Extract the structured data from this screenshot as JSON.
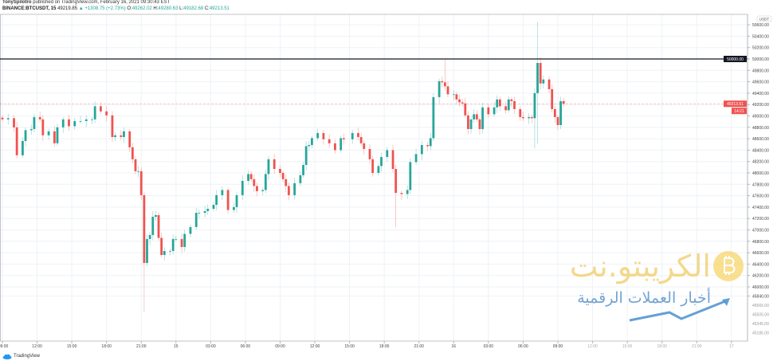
{
  "header": {
    "author": "TonySpilotro",
    "published": "published on TradingView.com, February 16, 2021 09:30:43 EST",
    "symbol": "BINANCE:BTCUSDT, 15",
    "last": "49219.85",
    "change": "▲ +1308.75 (+2.73%)",
    "o_label": "O:",
    "o": "49262.02",
    "h_label": "H:",
    "h": "49280.63",
    "l_label": "L:",
    "l": "49182.68",
    "c_label": "C:",
    "c": "49213.51"
  },
  "footer": {
    "brand": "TradingView"
  },
  "watermark": {
    "main": "الكريبتو.نت",
    "sub": "أخبار العملات الرقمية"
  },
  "colors": {
    "up": "#26a69a",
    "down": "#ef5350",
    "grid": "#eef2f6",
    "hline": "#131722",
    "axis": "#b2b5be"
  },
  "chart_data": {
    "type": "candlestick",
    "interval": "15m",
    "currency": "USDT",
    "ylim": [
      45100,
      50750
    ],
    "y_ticks": [
      "50600.00",
      "50400.00",
      "50200.00",
      "50000.00",
      "49800.00",
      "49600.00",
      "49400.00",
      "49200.00",
      "49000.00",
      "48800.00",
      "48600.00",
      "48400.00",
      "48200.00",
      "48000.00",
      "47800.00",
      "47600.00",
      "47400.00",
      "47200.00",
      "47000.00",
      "46800.00",
      "46600.00",
      "46400.00",
      "46200.00",
      "46000.00",
      "45840.00"
    ],
    "y_ticks_faded": [
      "45665.00",
      "45505.00",
      "45345.00",
      "45185.00"
    ],
    "x_ticks": [
      {
        "label": "09:00",
        "t": "14 09:00"
      },
      {
        "label": "12:00",
        "t": "14 12:00"
      },
      {
        "label": "15:00",
        "t": "14 15:00"
      },
      {
        "label": "18:00",
        "t": "14 18:00"
      },
      {
        "label": "21:00",
        "t": "14 21:00"
      },
      {
        "label": "15",
        "t": "15 00:00"
      },
      {
        "label": "03:00",
        "t": "15 03:00"
      },
      {
        "label": "06:00",
        "t": "15 06:00"
      },
      {
        "label": "09:00",
        "t": "15 09:00"
      },
      {
        "label": "12:00",
        "t": "15 12:00"
      },
      {
        "label": "15:00",
        "t": "15 15:00"
      },
      {
        "label": "18:00",
        "t": "15 18:00"
      },
      {
        "label": "21:00",
        "t": "15 21:00"
      },
      {
        "label": "16",
        "t": "16 00:00"
      },
      {
        "label": "03:00",
        "t": "16 03:00"
      },
      {
        "label": "06:00",
        "t": "16 06:00"
      },
      {
        "label": "09:00",
        "t": "16 09:00"
      },
      {
        "label": "12:00",
        "t": "16 12:00"
      },
      {
        "label": "15:00",
        "t": "16 15:00"
      },
      {
        "label": "18:00",
        "t": "16 18:00"
      },
      {
        "label": "21:00",
        "t": "16 21:00"
      },
      {
        "label": "17",
        "t": "17 00:00"
      }
    ],
    "horizontal_line": {
      "price": 50000,
      "label": "50000.00"
    },
    "last_price": {
      "price": 49213.51,
      "label": "49213.51",
      "countdown": "14:21"
    },
    "closes": [
      [
        "14 09:00",
        48940
      ],
      [
        "14 09:30",
        48960
      ],
      [
        "14 10:00",
        48800
      ],
      [
        "14 10:15",
        48310
      ],
      [
        "14 10:45",
        48560
      ],
      [
        "14 11:00",
        48750
      ],
      [
        "14 11:30",
        48770
      ],
      [
        "14 11:45",
        48980
      ],
      [
        "14 12:15",
        48940
      ],
      [
        "14 12:30",
        48660
      ],
      [
        "14 13:00",
        48730
      ],
      [
        "14 13:30",
        48520
      ],
      [
        "14 13:45",
        48800
      ],
      [
        "14 14:15",
        48940
      ],
      [
        "14 14:45",
        48820
      ],
      [
        "14 15:15",
        48910
      ],
      [
        "14 15:45",
        48910
      ],
      [
        "14 16:15",
        48940
      ],
      [
        "14 16:45",
        48940
      ],
      [
        "14 17:00",
        49170
      ],
      [
        "14 17:30",
        49080
      ],
      [
        "14 18:00",
        49010
      ],
      [
        "14 18:30",
        48630
      ],
      [
        "14 18:45",
        48660
      ],
      [
        "14 19:15",
        48630
      ],
      [
        "14 19:30",
        48730
      ],
      [
        "14 20:00",
        48450
      ],
      [
        "14 20:15",
        48240
      ],
      [
        "14 20:30",
        48030
      ],
      [
        "14 20:45",
        48030
      ],
      [
        "14 21:00",
        47610
      ],
      [
        "14 21:15",
        46420
      ],
      [
        "14 21:30",
        46840
      ],
      [
        "14 21:45",
        46910
      ],
      [
        "14 22:00",
        47230
      ],
      [
        "14 22:15",
        47260
      ],
      [
        "14 22:30",
        46860
      ],
      [
        "14 22:45",
        46560
      ],
      [
        "14 23:00",
        46630
      ],
      [
        "14 23:30",
        46630
      ],
      [
        "14 23:45",
        46840
      ],
      [
        "15 00:00",
        46840
      ],
      [
        "15 00:30",
        46700
      ],
      [
        "15 00:45",
        46930
      ],
      [
        "15 01:15",
        47050
      ],
      [
        "15 01:45",
        47300
      ],
      [
        "15 02:00",
        47300
      ],
      [
        "15 02:30",
        47330
      ],
      [
        "15 02:45",
        47370
      ],
      [
        "15 03:15",
        47440
      ],
      [
        "15 03:30",
        47610
      ],
      [
        "15 04:00",
        47700
      ],
      [
        "15 04:30",
        47350
      ],
      [
        "15 05:00",
        47400
      ],
      [
        "15 05:15",
        47610
      ],
      [
        "15 05:45",
        47860
      ],
      [
        "15 06:15",
        47980
      ],
      [
        "15 06:30",
        47890
      ],
      [
        "15 06:45",
        47770
      ],
      [
        "15 07:00",
        47680
      ],
      [
        "15 07:30",
        47700
      ],
      [
        "15 07:45",
        47980
      ],
      [
        "15 08:00",
        48240
      ],
      [
        "15 08:30",
        48070
      ],
      [
        "15 09:00",
        48000
      ],
      [
        "15 09:15",
        47890
      ],
      [
        "15 09:30",
        47770
      ],
      [
        "15 09:45",
        47610
      ],
      [
        "15 10:15",
        47820
      ],
      [
        "15 10:45",
        47960
      ],
      [
        "15 11:00",
        48140
      ],
      [
        "15 11:15",
        48470
      ],
      [
        "15 11:30",
        48490
      ],
      [
        "15 11:45",
        48610
      ],
      [
        "15 12:15",
        48700
      ],
      [
        "15 12:45",
        48590
      ],
      [
        "15 13:15",
        48520
      ],
      [
        "15 13:45",
        48400
      ],
      [
        "15 14:15",
        48610
      ],
      [
        "15 14:30",
        48590
      ],
      [
        "15 15:15",
        48700
      ],
      [
        "15 15:45",
        48630
      ],
      [
        "15 16:00",
        48520
      ],
      [
        "15 16:15",
        48420
      ],
      [
        "15 16:45",
        48240
      ],
      [
        "15 17:00",
        48000
      ],
      [
        "15 17:30",
        48120
      ],
      [
        "15 17:45",
        48280
      ],
      [
        "15 18:15",
        48400
      ],
      [
        "15 18:45",
        48070
      ],
      [
        "15 19:00",
        47650
      ],
      [
        "15 19:30",
        47630
      ],
      [
        "15 20:00",
        47700
      ],
      [
        "15 20:15",
        48190
      ],
      [
        "15 20:45",
        48330
      ],
      [
        "15 21:15",
        48490
      ],
      [
        "15 21:45",
        48470
      ],
      [
        "15 22:00",
        48610
      ],
      [
        "15 22:15",
        49330
      ],
      [
        "15 22:45",
        49610
      ],
      [
        "15 23:00",
        49590
      ],
      [
        "15 23:15",
        49520
      ],
      [
        "15 23:30",
        49380
      ],
      [
        "16 00:00",
        49380
      ],
      [
        "16 00:15",
        49290
      ],
      [
        "16 00:30",
        49240
      ],
      [
        "16 00:45",
        49220
      ],
      [
        "16 01:00",
        49010
      ],
      [
        "16 01:15",
        48770
      ],
      [
        "16 01:30",
        48940
      ],
      [
        "16 01:45",
        49030
      ],
      [
        "16 02:00",
        48940
      ],
      [
        "16 02:15",
        48770
      ],
      [
        "16 02:30",
        49150
      ],
      [
        "16 03:00",
        49030
      ],
      [
        "16 03:30",
        49150
      ],
      [
        "16 03:45",
        49290
      ],
      [
        "16 04:00",
        49170
      ],
      [
        "16 04:30",
        49100
      ],
      [
        "16 04:45",
        49290
      ],
      [
        "16 05:00",
        49260
      ],
      [
        "16 05:15",
        49120
      ],
      [
        "16 05:45",
        48980
      ],
      [
        "16 06:00",
        48960
      ],
      [
        "16 06:30",
        48980
      ],
      [
        "16 06:45",
        48960
      ],
      [
        "16 07:00",
        49400
      ],
      [
        "16 07:15",
        49930
      ],
      [
        "16 07:30",
        49570
      ],
      [
        "16 07:45",
        49640
      ],
      [
        "16 08:15",
        49470
      ],
      [
        "16 08:30",
        49120
      ],
      [
        "16 08:45",
        48980
      ],
      [
        "16 09:00",
        48840
      ],
      [
        "16 09:15",
        49260
      ],
      [
        "16 09:30",
        49213.51
      ]
    ],
    "wick_extremes": [
      {
        "t": "14 21:15",
        "low": 45550
      },
      {
        "t": "15 19:00",
        "low": 47050
      },
      {
        "t": "15 23:15",
        "high": 49990
      },
      {
        "t": "16 07:00",
        "low": 48430
      },
      {
        "t": "16 07:15",
        "high": 50650,
        "low": 48520
      }
    ]
  }
}
